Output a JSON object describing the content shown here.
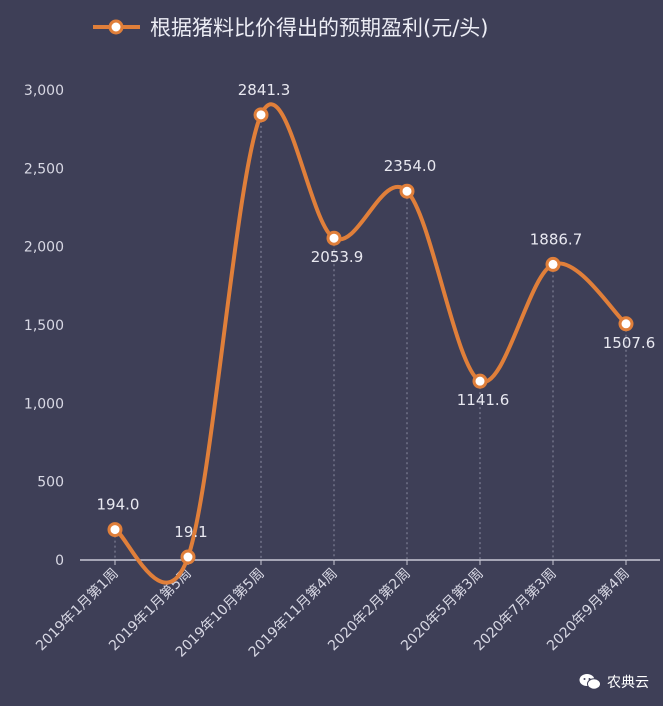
{
  "chart_data": {
    "type": "line",
    "title": "根据猪料比价得出的预期盈利(元/头)",
    "categories": [
      "2019年1月第1周",
      "2019年1月第5周",
      "2019年10月第5周",
      "2019年11月第4周",
      "2020年2月第2周",
      "2020年5月第3周",
      "2020年7月第3周",
      "2020年9月第4周"
    ],
    "series": [
      {
        "name": "根据猪料比价得出的预期盈利(元/头)",
        "values": [
          194.0,
          19.1,
          2841.3,
          2053.9,
          2354.0,
          1141.6,
          1886.7,
          1507.6
        ]
      }
    ],
    "value_labels": [
      "194.0",
      "19.1",
      "2841.3",
      "2053.9",
      "2354.0",
      "1141.6",
      "1886.7",
      "1507.6"
    ],
    "ylim": [
      0,
      3000
    ],
    "yticks": [
      0,
      500,
      1000,
      1500,
      2000,
      2500,
      3000
    ],
    "ytick_labels": [
      "0",
      "500",
      "1,000",
      "1,500",
      "2,000",
      "2,500",
      "3,000"
    ],
    "xlabel": "",
    "ylabel": "",
    "legend": "top",
    "grid": false,
    "colors": {
      "line": "#e07f3a",
      "marker_fill": "#ffffff",
      "background": "#3e3f57",
      "axis": "#c9c9d6",
      "dropline": "#8a8ba0"
    }
  },
  "watermark": {
    "text": "农典云",
    "icon": "wechat-icon"
  }
}
